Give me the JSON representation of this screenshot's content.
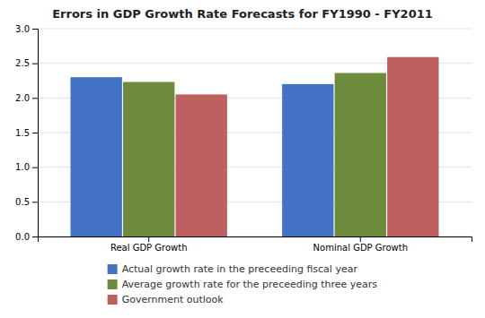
{
  "chart_data": {
    "type": "bar",
    "title": "Errors in GDP Growth Rate Forecasts for FY1990 - FY2011",
    "categories": [
      "Real GDP Growth",
      "Nominal GDP Growth"
    ],
    "series": [
      {
        "name": "Actual growth rate in the preceeding fiscal year",
        "color": "#4472C4",
        "values": [
          2.3,
          2.2
        ]
      },
      {
        "name": "Average growth rate for the preceeding three years",
        "color": "#6E8B3D",
        "values": [
          2.23,
          2.36
        ]
      },
      {
        "name": "Government outlook",
        "color": "#BE6060",
        "values": [
          2.05,
          2.59
        ]
      }
    ],
    "ylim": [
      0.0,
      3.0
    ],
    "yticks": [
      {
        "value": 0,
        "label": "0.0"
      },
      0.5,
      {
        "value": 1,
        "label": "1.0"
      },
      1.5,
      {
        "value": 2,
        "label": "2.0"
      },
      2.5,
      {
        "value": 3,
        "label": "3.0"
      }
    ],
    "grid": true,
    "legend": "bottom"
  }
}
